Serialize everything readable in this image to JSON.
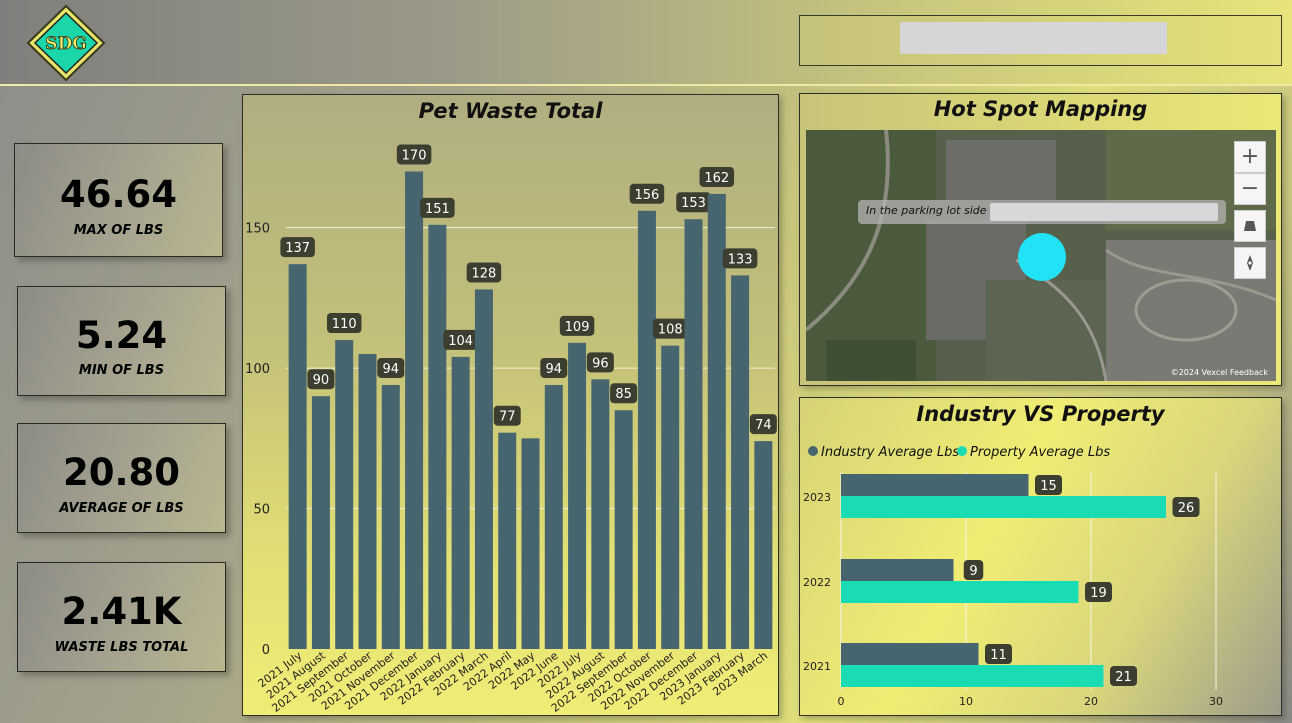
{
  "header": {
    "logo_text": "SDG"
  },
  "kpis": [
    {
      "value": "46.64",
      "label": "MAX OF LBS"
    },
    {
      "value": "5.24",
      "label": "MIN OF LBS"
    },
    {
      "value": "20.80",
      "label": "AVERAGE OF LBS"
    },
    {
      "value": "2.41K",
      "label": "WASTE LBS TOTAL"
    }
  ],
  "map": {
    "title": "Hot Spot Mapping",
    "tooltip": "In the parking lot side",
    "credit": "©2024 Vexcel  Feedback",
    "zoom_in": "+",
    "zoom_out": "−",
    "icons": [
      "zoom-in-icon",
      "zoom-out-icon",
      "tilt-icon",
      "compass-icon"
    ]
  },
  "chart_data": [
    {
      "type": "bar",
      "title": "Pet Waste Total",
      "categories": [
        "2021 July",
        "2021 August",
        "2021 September",
        "2021 October",
        "2021 November",
        "2021 December",
        "2022 January",
        "2022 February",
        "2022 March",
        "2022 April",
        "2022 May",
        "2022 June",
        "2022 July",
        "2022 August",
        "2022 September",
        "2022 October",
        "2022 November",
        "2022 December",
        "2023 January",
        "2023 February",
        "2023 March"
      ],
      "values": [
        137,
        90,
        110,
        105,
        94,
        170,
        151,
        104,
        128,
        77,
        75,
        94,
        109,
        96,
        85,
        156,
        108,
        153,
        162,
        133,
        74
      ],
      "data_labels": [
        "137",
        "90",
        "110",
        "",
        "94",
        "170",
        "151",
        "104",
        "128",
        "77",
        "",
        "94",
        "109",
        "96",
        "85",
        "156",
        "108",
        "153",
        "162",
        "133",
        "74"
      ],
      "yticks": [
        0,
        50,
        100,
        150
      ],
      "ylim": [
        0,
        178
      ],
      "grid": true,
      "color": "#46656f"
    },
    {
      "type": "bar",
      "orientation": "horizontal",
      "title": "Industry VS Property",
      "categories": [
        "2023",
        "2022",
        "2021"
      ],
      "series": [
        {
          "name": "Industry Average Lbs",
          "values": [
            15,
            9,
            11
          ],
          "color": "#46656f"
        },
        {
          "name": "Property Average Lbs",
          "values": [
            26,
            19,
            21
          ],
          "color": "#1adcb4"
        }
      ],
      "xticks": [
        0,
        10,
        20,
        30
      ],
      "xlim": [
        0,
        30
      ],
      "legend": "top-left",
      "grid": true
    }
  ]
}
